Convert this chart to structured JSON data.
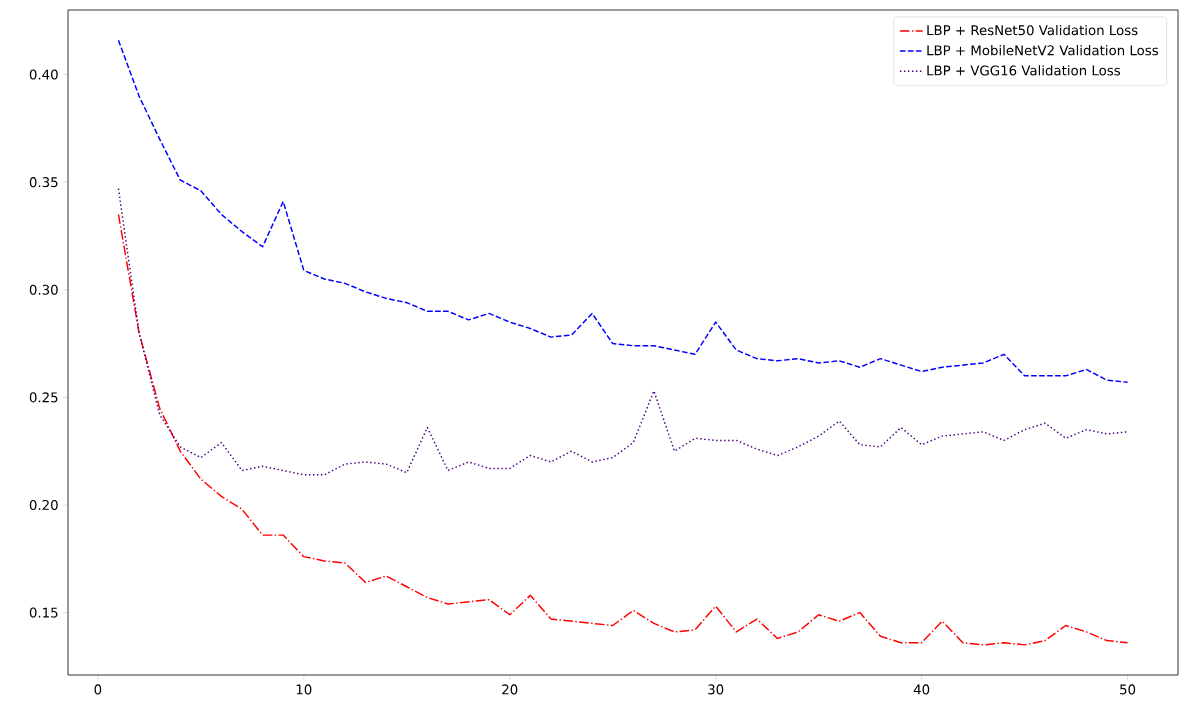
{
  "chart_data": {
    "type": "line",
    "x": [
      1,
      2,
      3,
      4,
      5,
      6,
      7,
      8,
      9,
      10,
      11,
      12,
      13,
      14,
      15,
      16,
      17,
      18,
      19,
      20,
      21,
      22,
      23,
      24,
      25,
      26,
      27,
      28,
      29,
      30,
      31,
      32,
      33,
      34,
      35,
      36,
      37,
      38,
      39,
      40,
      41,
      42,
      43,
      44,
      45,
      46,
      47,
      48,
      49,
      50
    ],
    "series": [
      {
        "name": "LBP + ResNet50 Validation Loss",
        "color": "#ff0000",
        "line_style": "dashdot",
        "values": [
          0.335,
          0.28,
          0.245,
          0.225,
          0.212,
          0.204,
          0.198,
          0.186,
          0.186,
          0.176,
          0.174,
          0.173,
          0.164,
          0.167,
          0.162,
          0.157,
          0.154,
          0.155,
          0.156,
          0.149,
          0.158,
          0.147,
          0.146,
          0.145,
          0.144,
          0.151,
          0.145,
          0.141,
          0.142,
          0.153,
          0.141,
          0.147,
          0.138,
          0.141,
          0.149,
          0.146,
          0.15,
          0.139,
          0.136,
          0.136,
          0.146,
          0.136,
          0.135,
          0.136,
          0.135,
          0.137,
          0.144,
          0.141,
          0.137,
          0.136
        ]
      },
      {
        "name": "LBP + MobileNetV2 Validation Loss",
        "color": "#0000ff",
        "line_style": "dashed",
        "values": [
          0.416,
          0.39,
          0.37,
          0.351,
          0.346,
          0.335,
          0.327,
          0.32,
          0.341,
          0.309,
          0.305,
          0.303,
          0.299,
          0.296,
          0.294,
          0.29,
          0.29,
          0.286,
          0.289,
          0.285,
          0.282,
          0.278,
          0.279,
          0.289,
          0.275,
          0.274,
          0.274,
          0.272,
          0.27,
          0.285,
          0.272,
          0.268,
          0.267,
          0.268,
          0.266,
          0.267,
          0.264,
          0.268,
          0.265,
          0.262,
          0.264,
          0.265,
          0.266,
          0.27,
          0.26,
          0.26,
          0.26,
          0.263,
          0.258,
          0.257
        ]
      },
      {
        "name": "LBP + VGG16 Validation Loss",
        "color": "#4b0082",
        "line_style": "dotted",
        "values": [
          0.347,
          0.28,
          0.242,
          0.227,
          0.222,
          0.229,
          0.216,
          0.218,
          0.216,
          0.214,
          0.214,
          0.219,
          0.22,
          0.219,
          0.215,
          0.236,
          0.216,
          0.22,
          0.217,
          0.217,
          0.223,
          0.22,
          0.225,
          0.22,
          0.222,
          0.229,
          0.253,
          0.225,
          0.231,
          0.23,
          0.23,
          0.226,
          0.223,
          0.227,
          0.232,
          0.239,
          0.228,
          0.227,
          0.236,
          0.228,
          0.232,
          0.233,
          0.234,
          0.23,
          0.235,
          0.238,
          0.231,
          0.235,
          0.233,
          0.234
        ]
      }
    ],
    "xlim": [
      -1.45,
      52.45
    ],
    "ylim": [
      0.121,
      0.43
    ],
    "xticks": [
      0,
      10,
      20,
      30,
      40,
      50
    ],
    "yticks": [
      {
        "value": 0.15,
        "label": "0.15"
      },
      {
        "value": 0.2,
        "label": "0.20"
      },
      {
        "value": 0.25,
        "label": "0.25"
      },
      {
        "value": 0.3,
        "label": "0.30"
      },
      {
        "value": 0.35,
        "label": "0.35"
      },
      {
        "value": 0.4,
        "label": "0.40"
      }
    ],
    "legend": "top right",
    "grid": false,
    "marker": "none"
  }
}
